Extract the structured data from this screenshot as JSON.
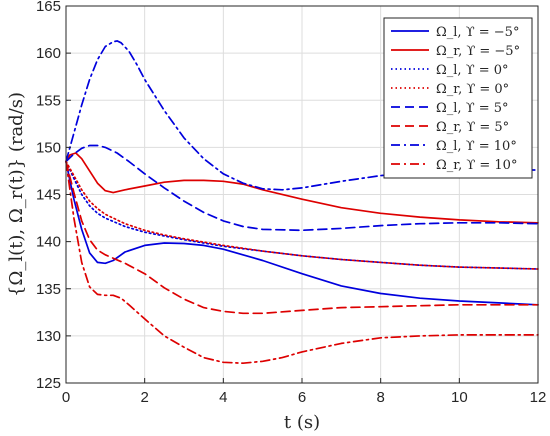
{
  "chart_data": {
    "type": "line",
    "xlabel": "t (s)",
    "ylabel": "{Ω_l(t), Ω_r(t)} (rad/s)",
    "xlim": [
      0,
      12
    ],
    "ylim": [
      125,
      165
    ],
    "xticks": [
      0,
      2,
      4,
      6,
      8,
      10,
      12
    ],
    "yticks": [
      125,
      130,
      135,
      140,
      145,
      150,
      155,
      160,
      165
    ],
    "grid": true,
    "legend_position": "top-right",
    "colors": {
      "blue": "#0000dd",
      "red": "#dd0000"
    },
    "series": [
      {
        "name": "Ω_l, ϒ = −5°",
        "color": "#0000dd",
        "dash": "solid",
        "x": [
          0,
          0.1,
          0.2,
          0.4,
          0.6,
          0.8,
          1.0,
          1.2,
          1.5,
          2,
          2.5,
          3,
          3.5,
          4,
          5,
          6,
          7,
          8,
          9,
          10,
          11,
          12
        ],
        "y": [
          148.5,
          146.5,
          144.5,
          141.3,
          138.8,
          137.8,
          137.7,
          138.0,
          138.9,
          139.6,
          139.85,
          139.8,
          139.6,
          139.2,
          138.0,
          136.6,
          135.3,
          134.5,
          134.0,
          133.7,
          133.5,
          133.3
        ]
      },
      {
        "name": "Ω_r, ϒ = −5°",
        "color": "#dd0000",
        "dash": "solid",
        "x": [
          0,
          0.1,
          0.25,
          0.4,
          0.6,
          0.8,
          1.0,
          1.2,
          1.5,
          2,
          2.5,
          3,
          3.5,
          4,
          4.5,
          5,
          6,
          7,
          8,
          9,
          10,
          11,
          12
        ],
        "y": [
          148.5,
          149.2,
          149.4,
          148.8,
          147.5,
          146.2,
          145.4,
          145.2,
          145.5,
          145.9,
          146.3,
          146.5,
          146.5,
          146.4,
          146.1,
          145.5,
          144.5,
          143.6,
          143.0,
          142.6,
          142.3,
          142.1,
          142.0
        ]
      },
      {
        "name": "Ω_l, ϒ = 0°",
        "color": "#0000dd",
        "dash": "dot",
        "x": [
          0,
          0.2,
          0.4,
          0.6,
          0.8,
          1.0,
          1.5,
          2,
          2.5,
          3,
          4,
          5,
          6,
          7,
          8,
          9,
          10,
          11,
          12
        ],
        "y": [
          148.5,
          146.7,
          145.0,
          143.8,
          143.0,
          142.5,
          141.6,
          141.0,
          140.6,
          140.2,
          139.5,
          139.0,
          138.5,
          138.1,
          137.8,
          137.5,
          137.3,
          137.2,
          137.1
        ]
      },
      {
        "name": "Ω_r, ϒ = 0°",
        "color": "#dd0000",
        "dash": "dot",
        "x": [
          0,
          0.2,
          0.4,
          0.6,
          0.8,
          1.0,
          1.5,
          2,
          2.5,
          3,
          4,
          5,
          6,
          7,
          8,
          9,
          10,
          11,
          12
        ],
        "y": [
          148.5,
          147.0,
          145.5,
          144.3,
          143.5,
          142.9,
          141.9,
          141.2,
          140.7,
          140.3,
          139.6,
          139.0,
          138.5,
          138.1,
          137.8,
          137.5,
          137.3,
          137.2,
          137.1
        ]
      },
      {
        "name": "Ω_l, ϒ = 5°",
        "color": "#0000dd",
        "dash": "dash",
        "x": [
          0,
          0.2,
          0.4,
          0.6,
          0.8,
          1.0,
          1.3,
          1.6,
          2,
          2.5,
          3,
          3.5,
          4,
          4.5,
          5,
          6,
          7,
          8,
          9,
          10,
          11,
          12
        ],
        "y": [
          148.5,
          149.3,
          149.9,
          150.2,
          150.2,
          150.0,
          149.4,
          148.5,
          147.2,
          145.7,
          144.3,
          143.1,
          142.2,
          141.6,
          141.3,
          141.2,
          141.4,
          141.7,
          141.9,
          142.0,
          142.0,
          141.9
        ]
      },
      {
        "name": "Ω_r, ϒ = 5°",
        "color": "#dd0000",
        "dash": "dash",
        "x": [
          0,
          0.2,
          0.4,
          0.6,
          0.8,
          1.0,
          1.5,
          2,
          2.5,
          3,
          3.5,
          4,
          4.5,
          5,
          6,
          7,
          8,
          9,
          10,
          11,
          12
        ],
        "y": [
          148.5,
          145.2,
          142.2,
          140.2,
          139.1,
          138.6,
          137.7,
          136.6,
          135.1,
          133.9,
          133.0,
          132.6,
          132.4,
          132.4,
          132.7,
          133.0,
          133.1,
          133.2,
          133.3,
          133.3,
          133.3
        ]
      },
      {
        "name": "Ω_l, ϒ = 10°",
        "color": "#0000dd",
        "dash": "dashdot",
        "x": [
          0,
          0.2,
          0.4,
          0.6,
          0.8,
          1.0,
          1.2,
          1.3,
          1.4,
          1.6,
          1.8,
          2,
          2.5,
          3,
          3.5,
          4,
          4.5,
          5,
          5.5,
          6,
          7,
          8,
          9,
          10,
          11,
          12
        ],
        "y": [
          148.5,
          151.5,
          154.5,
          157.2,
          159.3,
          160.7,
          161.2,
          161.3,
          161.1,
          160.2,
          158.8,
          157.2,
          153.9,
          151.0,
          148.8,
          147.2,
          146.2,
          145.6,
          145.5,
          145.7,
          146.4,
          147.0,
          147.4,
          147.5,
          147.6,
          147.6
        ]
      },
      {
        "name": "Ω_r, ϒ = 10°",
        "color": "#dd0000",
        "dash": "dashdot",
        "x": [
          0,
          0.2,
          0.4,
          0.6,
          0.8,
          1.0,
          1.2,
          1.4,
          1.6,
          2,
          2.5,
          3,
          3.5,
          4,
          4.5,
          5,
          5.5,
          6,
          7,
          8,
          9,
          10,
          11,
          12
        ],
        "y": [
          148.5,
          142.5,
          137.8,
          135.2,
          134.4,
          134.3,
          134.3,
          134.0,
          133.3,
          131.8,
          130.0,
          128.8,
          127.7,
          127.2,
          127.1,
          127.3,
          127.7,
          128.3,
          129.2,
          129.8,
          130.0,
          130.1,
          130.1,
          130.1
        ]
      }
    ]
  }
}
